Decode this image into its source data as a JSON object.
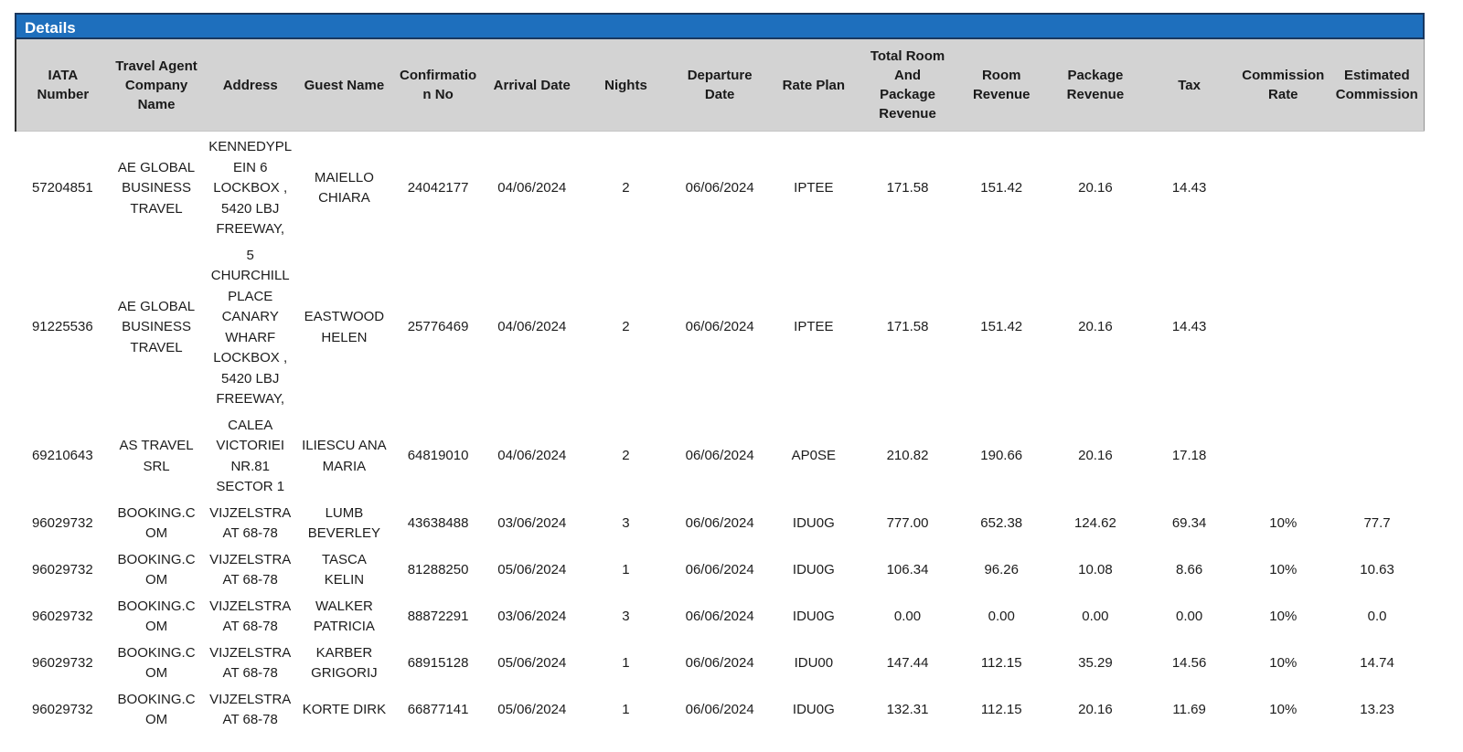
{
  "panel": {
    "title": "Details"
  },
  "colors": {
    "title_bar_bg": "#1e6fbd",
    "title_bar_border": "#19375f",
    "title_text": "#ffffff",
    "header_bg": "#d3d3d3",
    "header_text": "#1a1a1a",
    "body_text": "#1c1c1c"
  },
  "table": {
    "columns": [
      "IATA Number",
      "Travel Agent Company Name",
      "Address",
      "Guest Name",
      "Confirmation No",
      "Arrival Date",
      "Nights",
      "Departure Date",
      "Rate Plan",
      "Total Room And Package Revenue",
      "Room Revenue",
      "Package Revenue",
      "Tax",
      "Commission Rate",
      "Estimated Commission"
    ],
    "rows": [
      [
        "57204851",
        "AE GLOBAL BUSINESS TRAVEL",
        "KENNEDYPLEIN 6 LOCKBOX , 5420 LBJ FREEWAY,",
        "MAIELLO CHIARA",
        "24042177",
        "04/06/2024",
        "2",
        "06/06/2024",
        "IPTEE",
        "171.58",
        "151.42",
        "20.16",
        "14.43",
        "",
        ""
      ],
      [
        "91225536",
        "AE GLOBAL BUSINESS TRAVEL",
        "5 CHURCHILL PLACE CANARY WHARF LOCKBOX , 5420 LBJ FREEWAY,",
        "EASTWOOD HELEN",
        "25776469",
        "04/06/2024",
        "2",
        "06/06/2024",
        "IPTEE",
        "171.58",
        "151.42",
        "20.16",
        "14.43",
        "",
        ""
      ],
      [
        "69210643",
        "AS TRAVEL SRL",
        "CALEA VICTORIEI NR.81 SECTOR 1",
        "ILIESCU ANA MARIA",
        "64819010",
        "04/06/2024",
        "2",
        "06/06/2024",
        "AP0SE",
        "210.82",
        "190.66",
        "20.16",
        "17.18",
        "",
        ""
      ],
      [
        "96029732",
        "BOOKING.COM",
        "VIJZELSTRAAT 68-78",
        "LUMB BEVERLEY",
        "43638488",
        "03/06/2024",
        "3",
        "06/06/2024",
        "IDU0G",
        "777.00",
        "652.38",
        "124.62",
        "69.34",
        "10%",
        "77.7"
      ],
      [
        "96029732",
        "BOOKING.COM",
        "VIJZELSTRAAT 68-78",
        "TASCA KELIN",
        "81288250",
        "05/06/2024",
        "1",
        "06/06/2024",
        "IDU0G",
        "106.34",
        "96.26",
        "10.08",
        "8.66",
        "10%",
        "10.63"
      ],
      [
        "96029732",
        "BOOKING.COM",
        "VIJZELSTRAAT 68-78",
        "WALKER PATRICIA",
        "88872291",
        "03/06/2024",
        "3",
        "06/06/2024",
        "IDU0G",
        "0.00",
        "0.00",
        "0.00",
        "0.00",
        "10%",
        "0.0"
      ],
      [
        "96029732",
        "BOOKING.COM",
        "VIJZELSTRAAT 68-78",
        "KARBER GRIGORIJ",
        "68915128",
        "05/06/2024",
        "1",
        "06/06/2024",
        "IDU00",
        "147.44",
        "112.15",
        "35.29",
        "14.56",
        "10%",
        "14.74"
      ],
      [
        "96029732",
        "BOOKING.COM",
        "VIJZELSTRAAT 68-78",
        "KORTE DIRK",
        "66877141",
        "05/06/2024",
        "1",
        "06/06/2024",
        "IDU0G",
        "132.31",
        "112.15",
        "20.16",
        "11.69",
        "10%",
        "13.23"
      ]
    ]
  }
}
